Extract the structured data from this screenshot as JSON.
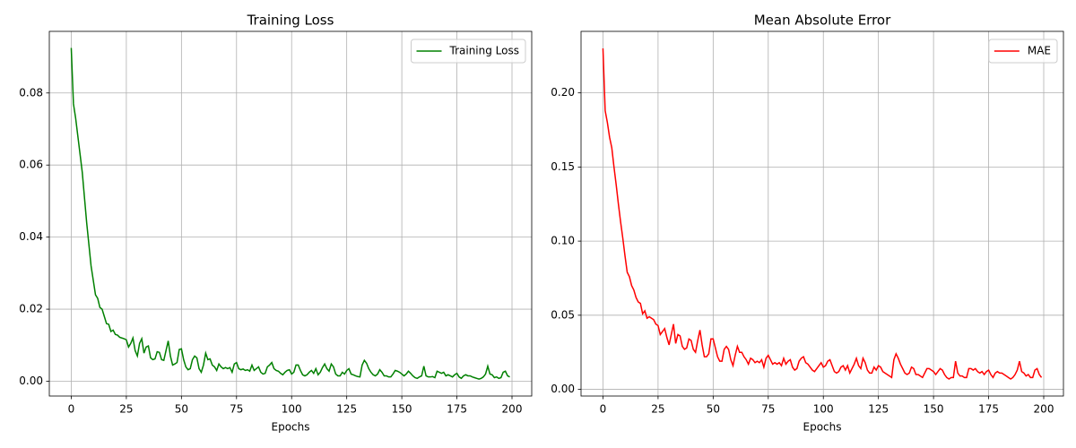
{
  "chart_data": [
    {
      "type": "line",
      "title": "Training Loss",
      "xlabel": "Epochs",
      "x": [
        0,
        1,
        2,
        3,
        4,
        5,
        6,
        7,
        8,
        9,
        10,
        11,
        12,
        13,
        14,
        15,
        16,
        17,
        18,
        19,
        20,
        21,
        22,
        23,
        24,
        25,
        26,
        27,
        28,
        29,
        30,
        31,
        32,
        33,
        34,
        35,
        36,
        37,
        38,
        39,
        40,
        41,
        42,
        43,
        44,
        45,
        46,
        47,
        48,
        49,
        50,
        51,
        52,
        53,
        54,
        55,
        56,
        57,
        58,
        59,
        60,
        61,
        62,
        63,
        64,
        65,
        66,
        67,
        68,
        69,
        70,
        71,
        72,
        73,
        74,
        75,
        76,
        77,
        78,
        79,
        80,
        81,
        82,
        83,
        84,
        85,
        86,
        87,
        88,
        89,
        90,
        91,
        92,
        93,
        94,
        95,
        96,
        97,
        98,
        99,
        100,
        101,
        102,
        103,
        104,
        105,
        106,
        107,
        108,
        109,
        110,
        111,
        112,
        113,
        114,
        115,
        116,
        117,
        118,
        119,
        120,
        121,
        122,
        123,
        124,
        125,
        126,
        127,
        128,
        129,
        130,
        131,
        132,
        133,
        134,
        135,
        136,
        137,
        138,
        139,
        140,
        141,
        142,
        143,
        144,
        145,
        146,
        147,
        148,
        149,
        150,
        151,
        152,
        153,
        154,
        155,
        156,
        157,
        158,
        159,
        160,
        161,
        162,
        163,
        164,
        165,
        166,
        167,
        168,
        169,
        170,
        171,
        172,
        173,
        174,
        175,
        176,
        177,
        178,
        179,
        180,
        181,
        182,
        183,
        184,
        185,
        186,
        187,
        188,
        189,
        190,
        191,
        192,
        193,
        194,
        195,
        196,
        197,
        198,
        199
      ],
      "series": [
        {
          "name": "Training Loss",
          "color": "#008000",
          "values": [
            0.0925,
            0.077,
            0.073,
            0.068,
            0.063,
            0.058,
            0.051,
            0.044,
            0.038,
            0.032,
            0.028,
            0.024,
            0.023,
            0.0205,
            0.02,
            0.018,
            0.016,
            0.0158,
            0.0138,
            0.0142,
            0.013,
            0.0128,
            0.0122,
            0.012,
            0.0118,
            0.0115,
            0.0095,
            0.0105,
            0.012,
            0.0085,
            0.007,
            0.0105,
            0.0118,
            0.0078,
            0.0095,
            0.0098,
            0.0065,
            0.006,
            0.0062,
            0.0082,
            0.008,
            0.006,
            0.0058,
            0.0085,
            0.0112,
            0.007,
            0.0045,
            0.0048,
            0.0052,
            0.0088,
            0.009,
            0.006,
            0.004,
            0.0032,
            0.0035,
            0.006,
            0.007,
            0.0065,
            0.0035,
            0.0025,
            0.0045,
            0.0078,
            0.006,
            0.0062,
            0.0045,
            0.004,
            0.003,
            0.0048,
            0.004,
            0.0035,
            0.0038,
            0.0035,
            0.0038,
            0.0025,
            0.0048,
            0.0052,
            0.0035,
            0.0032,
            0.0034,
            0.003,
            0.0032,
            0.0028,
            0.0045,
            0.003,
            0.0035,
            0.004,
            0.0025,
            0.002,
            0.0022,
            0.004,
            0.0045,
            0.0052,
            0.0035,
            0.003,
            0.0028,
            0.0022,
            0.0018,
            0.0025,
            0.003,
            0.0032,
            0.002,
            0.0025,
            0.0045,
            0.0045,
            0.003,
            0.0018,
            0.0015,
            0.0018,
            0.0025,
            0.003,
            0.0022,
            0.0035,
            0.0018,
            0.0025,
            0.0038,
            0.0048,
            0.0035,
            0.0028,
            0.0048,
            0.004,
            0.002,
            0.0015,
            0.0015,
            0.0025,
            0.002,
            0.003,
            0.0035,
            0.002,
            0.0018,
            0.0015,
            0.0013,
            0.0012,
            0.0045,
            0.0058,
            0.005,
            0.0035,
            0.0025,
            0.0018,
            0.0015,
            0.002,
            0.0032,
            0.0025,
            0.0015,
            0.0015,
            0.0012,
            0.0012,
            0.002,
            0.003,
            0.0028,
            0.0025,
            0.002,
            0.0015,
            0.002,
            0.0028,
            0.0022,
            0.0015,
            0.001,
            0.0008,
            0.0012,
            0.0015,
            0.0042,
            0.0015,
            0.0012,
            0.0012,
            0.0013,
            0.001,
            0.0028,
            0.0025,
            0.0022,
            0.0025,
            0.0015,
            0.0018,
            0.0015,
            0.0012,
            0.0018,
            0.0022,
            0.0012,
            0.0008,
            0.0015,
            0.0018,
            0.0015,
            0.0015,
            0.0012,
            0.001,
            0.0008,
            0.0006,
            0.0008,
            0.0012,
            0.002,
            0.0042,
            0.002,
            0.0018,
            0.001,
            0.0012,
            0.0008,
            0.001,
            0.0025,
            0.0028,
            0.0015,
            0.0012
          ]
        }
      ],
      "xlim": [
        -9.95,
        208.95
      ],
      "ylim": [
        -0.0041,
        0.0971
      ],
      "xticks": [
        0,
        25,
        50,
        75,
        100,
        125,
        150,
        175,
        200
      ],
      "yticks": [
        {
          "value": 0,
          "label": "0.00"
        },
        {
          "value": 0.02,
          "label": "0.02"
        },
        {
          "value": 0.04,
          "label": "0.04"
        },
        {
          "value": 0.06,
          "label": "0.06"
        },
        {
          "value": 0.08,
          "label": "0.08"
        }
      ],
      "grid": true,
      "legend": "upper right"
    },
    {
      "type": "line",
      "title": "Mean Absolute Error",
      "xlabel": "Epochs",
      "x": [
        0,
        1,
        2,
        3,
        4,
        5,
        6,
        7,
        8,
        9,
        10,
        11,
        12,
        13,
        14,
        15,
        16,
        17,
        18,
        19,
        20,
        21,
        22,
        23,
        24,
        25,
        26,
        27,
        28,
        29,
        30,
        31,
        32,
        33,
        34,
        35,
        36,
        37,
        38,
        39,
        40,
        41,
        42,
        43,
        44,
        45,
        46,
        47,
        48,
        49,
        50,
        51,
        52,
        53,
        54,
        55,
        56,
        57,
        58,
        59,
        60,
        61,
        62,
        63,
        64,
        65,
        66,
        67,
        68,
        69,
        70,
        71,
        72,
        73,
        74,
        75,
        76,
        77,
        78,
        79,
        80,
        81,
        82,
        83,
        84,
        85,
        86,
        87,
        88,
        89,
        90,
        91,
        92,
        93,
        94,
        95,
        96,
        97,
        98,
        99,
        100,
        101,
        102,
        103,
        104,
        105,
        106,
        107,
        108,
        109,
        110,
        111,
        112,
        113,
        114,
        115,
        116,
        117,
        118,
        119,
        120,
        121,
        122,
        123,
        124,
        125,
        126,
        127,
        128,
        129,
        130,
        131,
        132,
        133,
        134,
        135,
        136,
        137,
        138,
        139,
        140,
        141,
        142,
        143,
        144,
        145,
        146,
        147,
        148,
        149,
        150,
        151,
        152,
        153,
        154,
        155,
        156,
        157,
        158,
        159,
        160,
        161,
        162,
        163,
        164,
        165,
        166,
        167,
        168,
        169,
        170,
        171,
        172,
        173,
        174,
        175,
        176,
        177,
        178,
        179,
        180,
        181,
        182,
        183,
        184,
        185,
        186,
        187,
        188,
        189,
        190,
        191,
        192,
        193,
        194,
        195,
        196,
        197,
        198,
        199
      ],
      "series": [
        {
          "name": "MAE",
          "color": "#ff0000",
          "values": [
            0.23,
            0.188,
            0.18,
            0.17,
            0.163,
            0.15,
            0.138,
            0.125,
            0.113,
            0.102,
            0.09,
            0.079,
            0.076,
            0.07,
            0.067,
            0.062,
            0.059,
            0.058,
            0.051,
            0.053,
            0.048,
            0.049,
            0.048,
            0.047,
            0.044,
            0.043,
            0.037,
            0.039,
            0.041,
            0.035,
            0.03,
            0.037,
            0.044,
            0.031,
            0.037,
            0.036,
            0.029,
            0.027,
            0.028,
            0.034,
            0.033,
            0.027,
            0.025,
            0.033,
            0.04,
            0.03,
            0.022,
            0.022,
            0.024,
            0.034,
            0.034,
            0.028,
            0.022,
            0.019,
            0.019,
            0.027,
            0.029,
            0.027,
            0.02,
            0.016,
            0.023,
            0.029,
            0.025,
            0.025,
            0.022,
            0.02,
            0.017,
            0.021,
            0.02,
            0.018,
            0.019,
            0.018,
            0.02,
            0.015,
            0.021,
            0.023,
            0.02,
            0.017,
            0.018,
            0.017,
            0.018,
            0.016,
            0.021,
            0.017,
            0.019,
            0.02,
            0.015,
            0.013,
            0.014,
            0.019,
            0.021,
            0.022,
            0.018,
            0.017,
            0.015,
            0.013,
            0.012,
            0.014,
            0.016,
            0.018,
            0.015,
            0.016,
            0.019,
            0.02,
            0.016,
            0.012,
            0.011,
            0.012,
            0.015,
            0.016,
            0.013,
            0.016,
            0.011,
            0.014,
            0.017,
            0.021,
            0.016,
            0.014,
            0.021,
            0.018,
            0.013,
            0.011,
            0.011,
            0.015,
            0.013,
            0.016,
            0.015,
            0.012,
            0.011,
            0.01,
            0.009,
            0.008,
            0.02,
            0.024,
            0.021,
            0.017,
            0.014,
            0.011,
            0.01,
            0.011,
            0.015,
            0.014,
            0.01,
            0.01,
            0.009,
            0.008,
            0.011,
            0.014,
            0.014,
            0.013,
            0.012,
            0.01,
            0.012,
            0.014,
            0.013,
            0.01,
            0.008,
            0.007,
            0.008,
            0.008,
            0.019,
            0.011,
            0.009,
            0.009,
            0.008,
            0.008,
            0.014,
            0.014,
            0.013,
            0.014,
            0.012,
            0.011,
            0.012,
            0.01,
            0.012,
            0.013,
            0.01,
            0.008,
            0.011,
            0.012,
            0.011,
            0.011,
            0.01,
            0.009,
            0.008,
            0.007,
            0.008,
            0.01,
            0.013,
            0.019,
            0.012,
            0.011,
            0.009,
            0.01,
            0.008,
            0.008,
            0.013,
            0.014,
            0.01,
            0.008
          ]
        }
      ],
      "xlim": [
        -9.95,
        208.95
      ],
      "ylim": [
        -0.0045,
        0.2415
      ],
      "xticks": [
        0,
        25,
        50,
        75,
        100,
        125,
        150,
        175,
        200
      ],
      "yticks": [
        {
          "value": 0,
          "label": "0.00"
        },
        {
          "value": 0.05,
          "label": "0.05"
        },
        {
          "value": 0.1,
          "label": "0.10"
        },
        {
          "value": 0.15,
          "label": "0.15"
        },
        {
          "value": 0.2,
          "label": "0.20"
        }
      ],
      "grid": true,
      "legend": "upper right"
    }
  ]
}
